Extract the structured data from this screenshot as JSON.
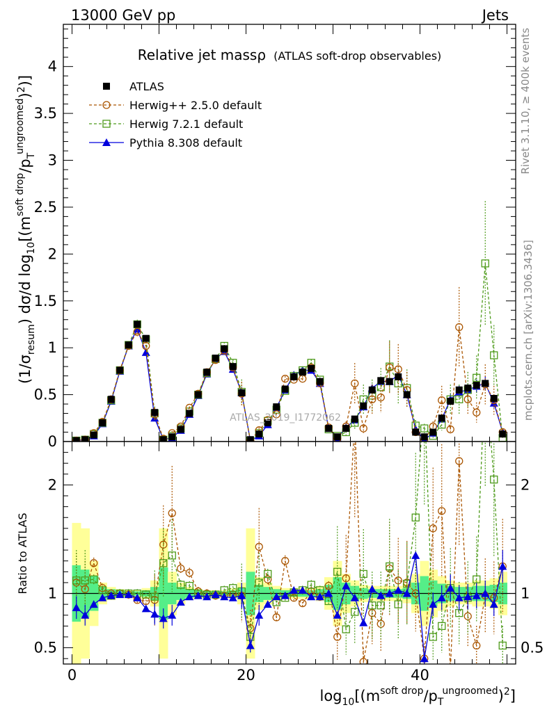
{
  "header": {
    "left": "13000 GeV pp",
    "right": "Jets"
  },
  "side_labels": {
    "rivet": "Rivet 3.1.10, ≥ 400k events",
    "mcplots": "mcplots.cern.ch [arXiv:1306.3436]"
  },
  "colors": {
    "atlas": "#000000",
    "herwigpp": "#aa5500",
    "herwig7": "#4d9a1a",
    "pythia": "#0000dd",
    "band_yellow": "#ffff99",
    "band_green": "#55ee88"
  },
  "chart_data": {
    "type": "line",
    "title": "Relative jet massρ",
    "subtitle": "(ATLAS soft-drop observables)",
    "watermark": "ATLAS_2019_I1772062",
    "xlabel": "log10[(m^soft drop/pT^ungroomed)^2]",
    "ylabel_main": "(1/σresum) dσ/d log10[(m^soft drop/pT^ungroomed)^2]",
    "ylabel_ratio": "Ratio to ATLAS",
    "xlim": [
      -1,
      51
    ],
    "ylim_main": [
      0,
      4.45
    ],
    "ylim_ratio": [
      0.35,
      2.4
    ],
    "x_ticks": [
      "0",
      "20",
      "40"
    ],
    "y_ticks_main": [
      "0",
      "0.5",
      "1",
      "1.5",
      "2",
      "2.5",
      "3",
      "3.5",
      "4"
    ],
    "y_ticks_ratio": [
      "0.5",
      "1",
      "2"
    ],
    "legend": [
      "ATLAS",
      "Herwig++ 2.5.0 default",
      "Herwig 7.2.1 default",
      "Pythia 8.308 default"
    ],
    "x": [
      0.5,
      1.5,
      2.5,
      3.5,
      4.5,
      5.5,
      6.5,
      7.5,
      8.5,
      9.5,
      10.5,
      11.5,
      12.5,
      13.5,
      14.5,
      15.5,
      16.5,
      17.5,
      18.5,
      19.5,
      20.5,
      21.5,
      22.5,
      23.5,
      24.5,
      25.5,
      26.5,
      27.5,
      28.5,
      29.5,
      30.5,
      31.5,
      32.5,
      33.5,
      34.5,
      35.5,
      36.5,
      37.5,
      38.5,
      39.5,
      40.5,
      41.5,
      42.5,
      43.5,
      44.5,
      45.5,
      46.5,
      47.5,
      48.5,
      49.5
    ],
    "series": [
      {
        "name": "ATLAS",
        "values": [
          0.01,
          0.02,
          0.07,
          0.2,
          0.45,
          0.76,
          1.03,
          1.25,
          1.1,
          0.31,
          0.02,
          0.05,
          0.13,
          0.3,
          0.5,
          0.74,
          0.89,
          0.99,
          0.8,
          0.52,
          0.02,
          0.08,
          0.2,
          0.37,
          0.56,
          0.69,
          0.74,
          0.78,
          0.64,
          0.14,
          0.05,
          0.14,
          0.24,
          0.38,
          0.55,
          0.65,
          0.64,
          0.69,
          0.5,
          0.1,
          0.05,
          0.1,
          0.25,
          0.43,
          0.55,
          0.57,
          0.6,
          0.62,
          0.46,
          0.08
        ]
      },
      {
        "name": "Herwig++ 2.5.0 default",
        "values": [
          0.01,
          0.02,
          0.09,
          0.21,
          0.45,
          0.76,
          1.02,
          1.17,
          1.02,
          0.29,
          0.03,
          0.09,
          0.16,
          0.36,
          0.51,
          0.74,
          0.87,
          0.97,
          0.79,
          0.51,
          0.01,
          0.12,
          0.23,
          0.29,
          0.67,
          0.66,
          0.67,
          0.79,
          0.62,
          0.15,
          0.03,
          0.16,
          0.62,
          0.14,
          0.45,
          0.47,
          0.79,
          0.77,
          0.55,
          0.1,
          0.02,
          0.16,
          0.44,
          0.13,
          1.22,
          0.45,
          0.31,
          0.61,
          0.44,
          0.1
        ]
      },
      {
        "name": "Herwig 7.2.1 default",
        "values": [
          0.01,
          0.02,
          0.08,
          0.2,
          0.44,
          0.76,
          1.03,
          1.25,
          1.09,
          0.3,
          0.02,
          0.06,
          0.14,
          0.32,
          0.5,
          0.73,
          0.88,
          1.02,
          0.84,
          0.53,
          0.01,
          0.09,
          0.22,
          0.34,
          0.54,
          0.7,
          0.76,
          0.84,
          0.66,
          0.13,
          0.06,
          0.1,
          0.2,
          0.45,
          0.49,
          0.58,
          0.8,
          0.62,
          0.57,
          0.17,
          0.14,
          0.06,
          0.18,
          0.45,
          0.45,
          0.55,
          0.68,
          1.9,
          0.92,
          0.04
        ]
      },
      {
        "name": "Pythia 8.308 default",
        "values": [
          0.01,
          0.02,
          0.06,
          0.19,
          0.43,
          0.75,
          1.02,
          1.2,
          0.95,
          0.25,
          0.02,
          0.04,
          0.12,
          0.29,
          0.49,
          0.72,
          0.88,
          0.96,
          0.77,
          0.52,
          0.01,
          0.06,
          0.18,
          0.36,
          0.55,
          0.71,
          0.76,
          0.76,
          0.62,
          0.14,
          0.04,
          0.15,
          0.23,
          0.37,
          0.57,
          0.64,
          0.64,
          0.71,
          0.5,
          0.13,
          0.02,
          0.09,
          0.24,
          0.45,
          0.53,
          0.55,
          0.59,
          0.62,
          0.41,
          0.1
        ]
      }
    ],
    "ratios": [
      {
        "name": "Herwig++ 2.5.0 default",
        "values": [
          1.1,
          1.04,
          1.28,
          1.05,
          1.0,
          1.0,
          0.99,
          0.94,
          0.93,
          0.94,
          1.45,
          1.74,
          1.23,
          1.19,
          1.02,
          1.0,
          0.98,
          0.98,
          0.99,
          0.98,
          0.68,
          1.43,
          1.13,
          0.78,
          1.3,
          0.96,
          0.91,
          1.02,
          0.97,
          1.07,
          0.6,
          1.14,
          2.6,
          0.37,
          0.82,
          0.72,
          1.23,
          1.12,
          1.1,
          1.0,
          0.4,
          1.6,
          1.76,
          0.3,
          2.22,
          0.79,
          0.52,
          0.98,
          0.96,
          1.25
        ]
      },
      {
        "name": "Herwig 7.2.1 default",
        "values": [
          1.12,
          1.12,
          1.13,
          1.03,
          0.98,
          1.0,
          1.0,
          1.0,
          0.99,
          0.97,
          1.28,
          1.35,
          1.08,
          1.07,
          1.0,
          0.99,
          0.99,
          1.03,
          1.05,
          1.02,
          0.6,
          1.1,
          1.18,
          0.92,
          0.96,
          1.01,
          1.03,
          1.08,
          1.03,
          0.93,
          1.2,
          0.67,
          0.83,
          1.18,
          0.89,
          0.89,
          1.25,
          0.9,
          1.09,
          1.7,
          2.8,
          0.6,
          0.7,
          1.05,
          0.82,
          0.96,
          1.13,
          3.06,
          2.05,
          0.52
        ]
      },
      {
        "name": "Pythia 8.308 default",
        "values": [
          0.87,
          0.8,
          0.9,
          0.96,
          0.98,
          0.99,
          0.99,
          0.96,
          0.86,
          0.81,
          0.77,
          0.8,
          0.92,
          0.97,
          0.98,
          0.97,
          0.99,
          0.97,
          0.96,
          0.98,
          0.52,
          0.8,
          0.9,
          0.97,
          0.98,
          1.03,
          1.03,
          0.97,
          0.97,
          1.0,
          0.8,
          1.07,
          0.96,
          0.73,
          1.04,
          0.98,
          1.0,
          1.03,
          1.0,
          1.35,
          0.4,
          0.9,
          0.96,
          1.05,
          0.96,
          0.97,
          0.98,
          1.0,
          0.9,
          1.25
        ]
      }
    ],
    "uncertainty_inner": [
      0.26,
      0.22,
      0.16,
      0.06,
      0.04,
      0.03,
      0.02,
      0.02,
      0.03,
      0.06,
      0.24,
      0.1,
      0.06,
      0.04,
      0.03,
      0.02,
      0.02,
      0.02,
      0.03,
      0.05,
      0.2,
      0.08,
      0.06,
      0.04,
      0.03,
      0.03,
      0.03,
      0.03,
      0.04,
      0.08,
      0.15,
      0.1,
      0.07,
      0.05,
      0.04,
      0.04,
      0.04,
      0.04,
      0.05,
      0.1,
      0.16,
      0.12,
      0.09,
      0.07,
      0.06,
      0.06,
      0.07,
      0.07,
      0.08,
      0.1
    ],
    "uncertainty_outer": [
      0.65,
      0.6,
      0.3,
      0.1,
      0.06,
      0.04,
      0.03,
      0.03,
      0.05,
      0.12,
      0.6,
      0.2,
      0.1,
      0.06,
      0.04,
      0.03,
      0.03,
      0.03,
      0.05,
      0.1,
      0.6,
      0.15,
      0.1,
      0.07,
      0.05,
      0.05,
      0.05,
      0.05,
      0.07,
      0.15,
      0.3,
      0.18,
      0.12,
      0.08,
      0.07,
      0.07,
      0.07,
      0.07,
      0.09,
      0.18,
      0.3,
      0.22,
      0.16,
      0.12,
      0.1,
      0.1,
      0.12,
      0.12,
      0.14,
      0.2
    ]
  }
}
